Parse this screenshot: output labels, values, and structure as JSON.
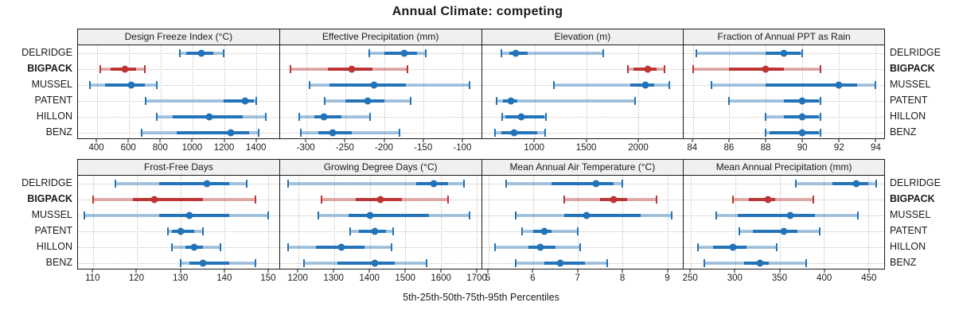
{
  "chart_data": {
    "type": "dotplot",
    "title": "Annual Climate: competing",
    "xlabel": "5th-25th-50th-75th-95th Percentiles",
    "percentile_labels": [
      "5th",
      "25th",
      "50th",
      "75th",
      "95th"
    ],
    "categories": [
      "DELRIDGE",
      "BIGPACK",
      "MUSSEL",
      "PATENT",
      "HILLON",
      "BENZ"
    ],
    "highlight_category": "BIGPACK",
    "legend_position": "none",
    "grid": "dotted",
    "colors": {
      "series": "#2273b7",
      "highlight": "#bd3434",
      "strip_bg": "#f0f0f0",
      "grid": "#c2c2c2",
      "border": "#1a1a1a",
      "text": "#1a1a1a"
    },
    "panels": [
      {
        "title": "Design Freeze Index (°C)",
        "xlim": [
          280,
          1545
        ],
        "ticks": [
          400,
          600,
          800,
          1000,
          1200,
          1400
        ],
        "values": [
          [
            920,
            960,
            1055,
            1130,
            1195
          ],
          [
            420,
            485,
            575,
            645,
            700
          ],
          [
            355,
            450,
            615,
            700,
            775
          ],
          [
            705,
            1195,
            1330,
            1385,
            1400
          ],
          [
            775,
            875,
            1105,
            1315,
            1460
          ],
          [
            680,
            900,
            1240,
            1355,
            1415
          ]
        ]
      },
      {
        "title": "Effective Precipitation (mm)",
        "xlim": [
          -334,
          -76
        ],
        "ticks": [
          -300,
          -250,
          -200,
          -150,
          -100
        ],
        "values": [
          [
            -219,
            -200,
            -174,
            -158,
            -147
          ],
          [
            -320,
            -272,
            -242,
            -215,
            -170
          ],
          [
            -296,
            -270,
            -213,
            -172,
            -91
          ],
          [
            -277,
            -250,
            -221,
            -200,
            -166
          ],
          [
            -309,
            -290,
            -278,
            -255,
            -218
          ],
          [
            -307,
            -285,
            -266,
            -242,
            -181
          ]
        ]
      },
      {
        "title": "Elevation (m)",
        "xlim": [
          490,
          2430
        ],
        "ticks": [
          1000,
          1500,
          2000
        ],
        "values": [
          [
            675,
            755,
            815,
            930,
            1660
          ],
          [
            1900,
            1955,
            2090,
            2175,
            2255
          ],
          [
            1185,
            1920,
            2065,
            2150,
            2295
          ],
          [
            630,
            690,
            770,
            830,
            1965
          ],
          [
            685,
            715,
            870,
            1095,
            1110
          ],
          [
            615,
            680,
            800,
            1020,
            1100
          ]
        ]
      },
      {
        "title": "Fraction of Annual PPT as Rain",
        "xlim": [
          83.5,
          94.5
        ],
        "ticks": [
          84,
          86,
          88,
          90,
          92,
          94
        ],
        "values": [
          [
            84.2,
            88,
            89,
            89.9,
            90
          ],
          [
            84,
            86,
            88,
            89,
            91
          ],
          [
            85,
            88,
            92,
            93,
            94
          ],
          [
            86,
            89,
            90,
            90.9,
            91
          ],
          [
            88,
            89,
            90,
            90.9,
            91
          ],
          [
            88,
            88.2,
            90,
            90.9,
            91
          ]
        ]
      },
      {
        "title": "Frost-Free Days",
        "xlim": [
          106.5,
          152.5
        ],
        "ticks": [
          110,
          120,
          130,
          140,
          150
        ],
        "values": [
          [
            115,
            125,
            136,
            141,
            145
          ],
          [
            110,
            119,
            124,
            135,
            147
          ],
          [
            108,
            125,
            132,
            141,
            150
          ],
          [
            127,
            128,
            130,
            133,
            135
          ],
          [
            128,
            131,
            133,
            135,
            139
          ],
          [
            130,
            132,
            135,
            141,
            147
          ]
        ]
      },
      {
        "title": "Growing Degree Days (°C)",
        "xlim": [
          1148,
          1712
        ],
        "ticks": [
          1200,
          1300,
          1400,
          1500,
          1600,
          1700
        ],
        "values": [
          [
            1170,
            1530,
            1580,
            1620,
            1665
          ],
          [
            1265,
            1360,
            1430,
            1490,
            1620
          ],
          [
            1255,
            1340,
            1400,
            1565,
            1680
          ],
          [
            1345,
            1370,
            1415,
            1445,
            1465
          ],
          [
            1170,
            1250,
            1320,
            1385,
            1460
          ],
          [
            1215,
            1310,
            1415,
            1470,
            1560
          ]
        ]
      },
      {
        "title": "Mean Annual Air Temperature (°C)",
        "xlim": [
          4.85,
          9.35
        ],
        "ticks": [
          5,
          6,
          7,
          8,
          9
        ],
        "values": [
          [
            5.4,
            6.4,
            7.4,
            7.8,
            8.0
          ],
          [
            6.7,
            7.5,
            7.8,
            8.1,
            8.75
          ],
          [
            5.6,
            6.7,
            7.2,
            8.4,
            9.1
          ],
          [
            5.75,
            6.0,
            6.25,
            6.4,
            7.0
          ],
          [
            5.15,
            5.9,
            6.15,
            6.5,
            7.05
          ],
          [
            5.6,
            6.25,
            6.6,
            7.15,
            7.65
          ]
        ]
      },
      {
        "title": "Mean Annual Precipitation (mm)",
        "xlim": [
          242,
          468
        ],
        "ticks": [
          250,
          300,
          350,
          400,
          450
        ],
        "values": [
          [
            368,
            410,
            437,
            450,
            459
          ],
          [
            297,
            315,
            337,
            345,
            388
          ],
          [
            279,
            303,
            362,
            390,
            438
          ],
          [
            305,
            320,
            355,
            370,
            395
          ],
          [
            258,
            275,
            297,
            313,
            347
          ],
          [
            265,
            310,
            328,
            338,
            380
          ]
        ]
      }
    ]
  }
}
